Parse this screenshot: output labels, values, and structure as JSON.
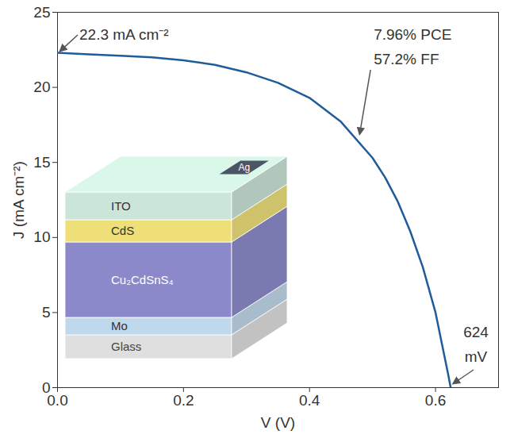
{
  "chart_data": {
    "type": "line",
    "x_label": "V (V)",
    "y_label": "J (mA cm⁻²)",
    "color": "#1f5c99",
    "x": [
      0,
      0.05,
      0.1,
      0.15,
      0.2,
      0.25,
      0.3,
      0.35,
      0.4,
      0.45,
      0.5,
      0.52,
      0.54,
      0.56,
      0.58,
      0.6,
      0.62,
      0.624
    ],
    "values": [
      22.3,
      22.2,
      22.1,
      22.0,
      21.8,
      21.5,
      21.0,
      20.3,
      19.3,
      17.7,
      15.3,
      14.0,
      12.4,
      10.4,
      8.0,
      5.0,
      0.9,
      0
    ],
    "xlim": [
      0,
      0.7
    ],
    "xticks": [
      {
        "value": 0,
        "label": "0.0"
      },
      0.2,
      0.4,
      0.6
    ],
    "ylim": [
      0,
      25
    ],
    "yticks": [
      0,
      5,
      10,
      15,
      20,
      25
    ],
    "grid": false,
    "annotations": [
      {
        "lines": [
          "22.3 mA cm⁻²"
        ],
        "x": 0,
        "y": 22.3
      },
      {
        "lines": [
          "7.96% PCE",
          "57.2% FF"
        ],
        "x": 0.475,
        "y": 16.6
      },
      {
        "lines": [
          "624",
          "mV"
        ],
        "x": 0.624,
        "y": 0
      }
    ],
    "inset": {
      "layers": [
        "Glass",
        "Mo",
        "Cu₂CdSnS₄",
        "CdS",
        "ITO"
      ],
      "contact": "Ag"
    }
  }
}
